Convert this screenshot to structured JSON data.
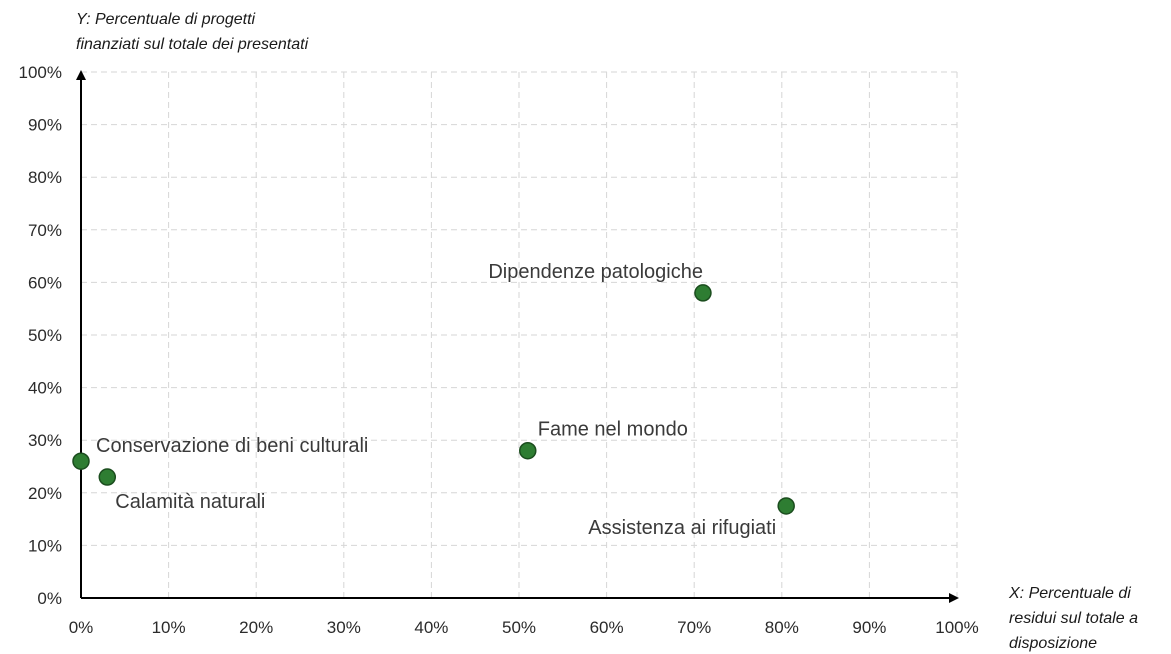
{
  "chart_data": {
    "type": "scatter",
    "title": "",
    "xlabel": [
      "X: Percentuale di",
      "residui sul totale a",
      "disposizione"
    ],
    "ylabel": [
      "Y: Percentuale di progetti",
      "finanziati sul totale dei presentati"
    ],
    "xlim": [
      0,
      100
    ],
    "ylim": [
      0,
      100
    ],
    "x_ticks": [
      0,
      10,
      20,
      30,
      40,
      50,
      60,
      70,
      80,
      90,
      100
    ],
    "y_ticks": [
      0,
      10,
      20,
      30,
      40,
      50,
      60,
      70,
      80,
      90,
      100
    ],
    "x_tick_labels": [
      "0%",
      "10%",
      "20%",
      "30%",
      "40%",
      "50%",
      "60%",
      "70%",
      "80%",
      "90%",
      "100%"
    ],
    "y_tick_labels": [
      "0%",
      "10%",
      "20%",
      "30%",
      "40%",
      "50%",
      "60%",
      "70%",
      "80%",
      "90%",
      "100%"
    ],
    "grid": true,
    "point_color": "#2e7d32",
    "point_stroke": "#1b4d1e",
    "points": [
      {
        "label": "Conservazione di beni culturali",
        "x": 0,
        "y": 26
      },
      {
        "label": "Calamità naturali",
        "x": 3,
        "y": 23
      },
      {
        "label": "Fame nel mondo",
        "x": 51,
        "y": 28
      },
      {
        "label": "Dipendenze patologiche",
        "x": 71,
        "y": 58
      },
      {
        "label": "Assistenza ai rifugiati",
        "x": 80.5,
        "y": 17.5
      }
    ]
  }
}
